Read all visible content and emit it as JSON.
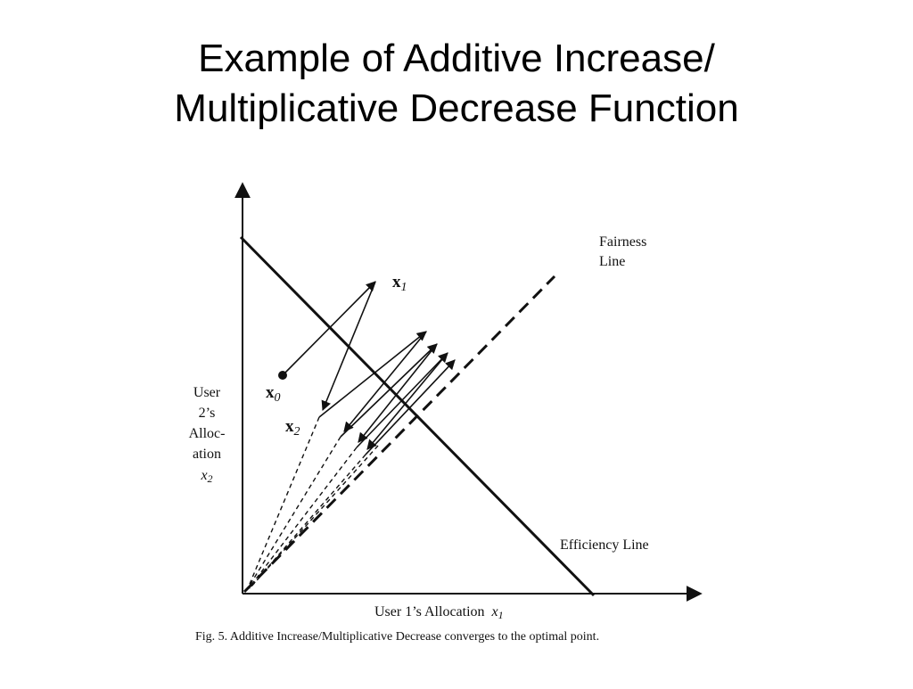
{
  "slide": {
    "title_line1": "Example of Additive Increase/",
    "title_line2": "Multiplicative Decrease Function"
  },
  "figure": {
    "fairness_line_label_1": "Fairness",
    "fairness_line_label_2": "Line",
    "efficiency_line_label": "Efficiency Line",
    "x_axis_label": "User 1’s Allocation",
    "x_axis_var": "x",
    "x_axis_sub": "1",
    "y_axis_label_lines": [
      "User",
      "2’s",
      "Alloc-",
      "ation"
    ],
    "y_axis_var": "x",
    "y_axis_sub": "2",
    "point_x0": "x",
    "point_x0_sub": "0",
    "point_x1": "x",
    "point_x1_sub": "1",
    "point_x2": "x",
    "point_x2_sub": "2",
    "caption": "Fig. 5. Additive Increase/Multiplicative Decrease converges to the optimal point."
  }
}
